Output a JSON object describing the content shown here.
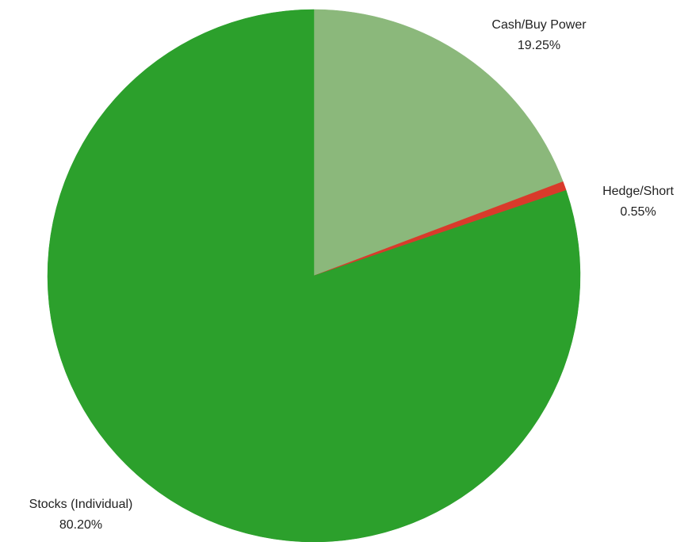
{
  "chart_data": {
    "type": "pie",
    "title": "",
    "start_angle_deg": 0,
    "direction": "clockwise",
    "slices": [
      {
        "name": "Cash/Buy Power",
        "value": 19.25,
        "label": "19.25%",
        "color": "#8bb87b"
      },
      {
        "name": "Hedge/Short",
        "value": 0.55,
        "label": "0.55%",
        "color": "#d93a2b"
      },
      {
        "name": "Stocks (Individual)",
        "value": 80.2,
        "label": "80.20%",
        "color": "#2ca02c"
      }
    ],
    "legend": "none"
  }
}
